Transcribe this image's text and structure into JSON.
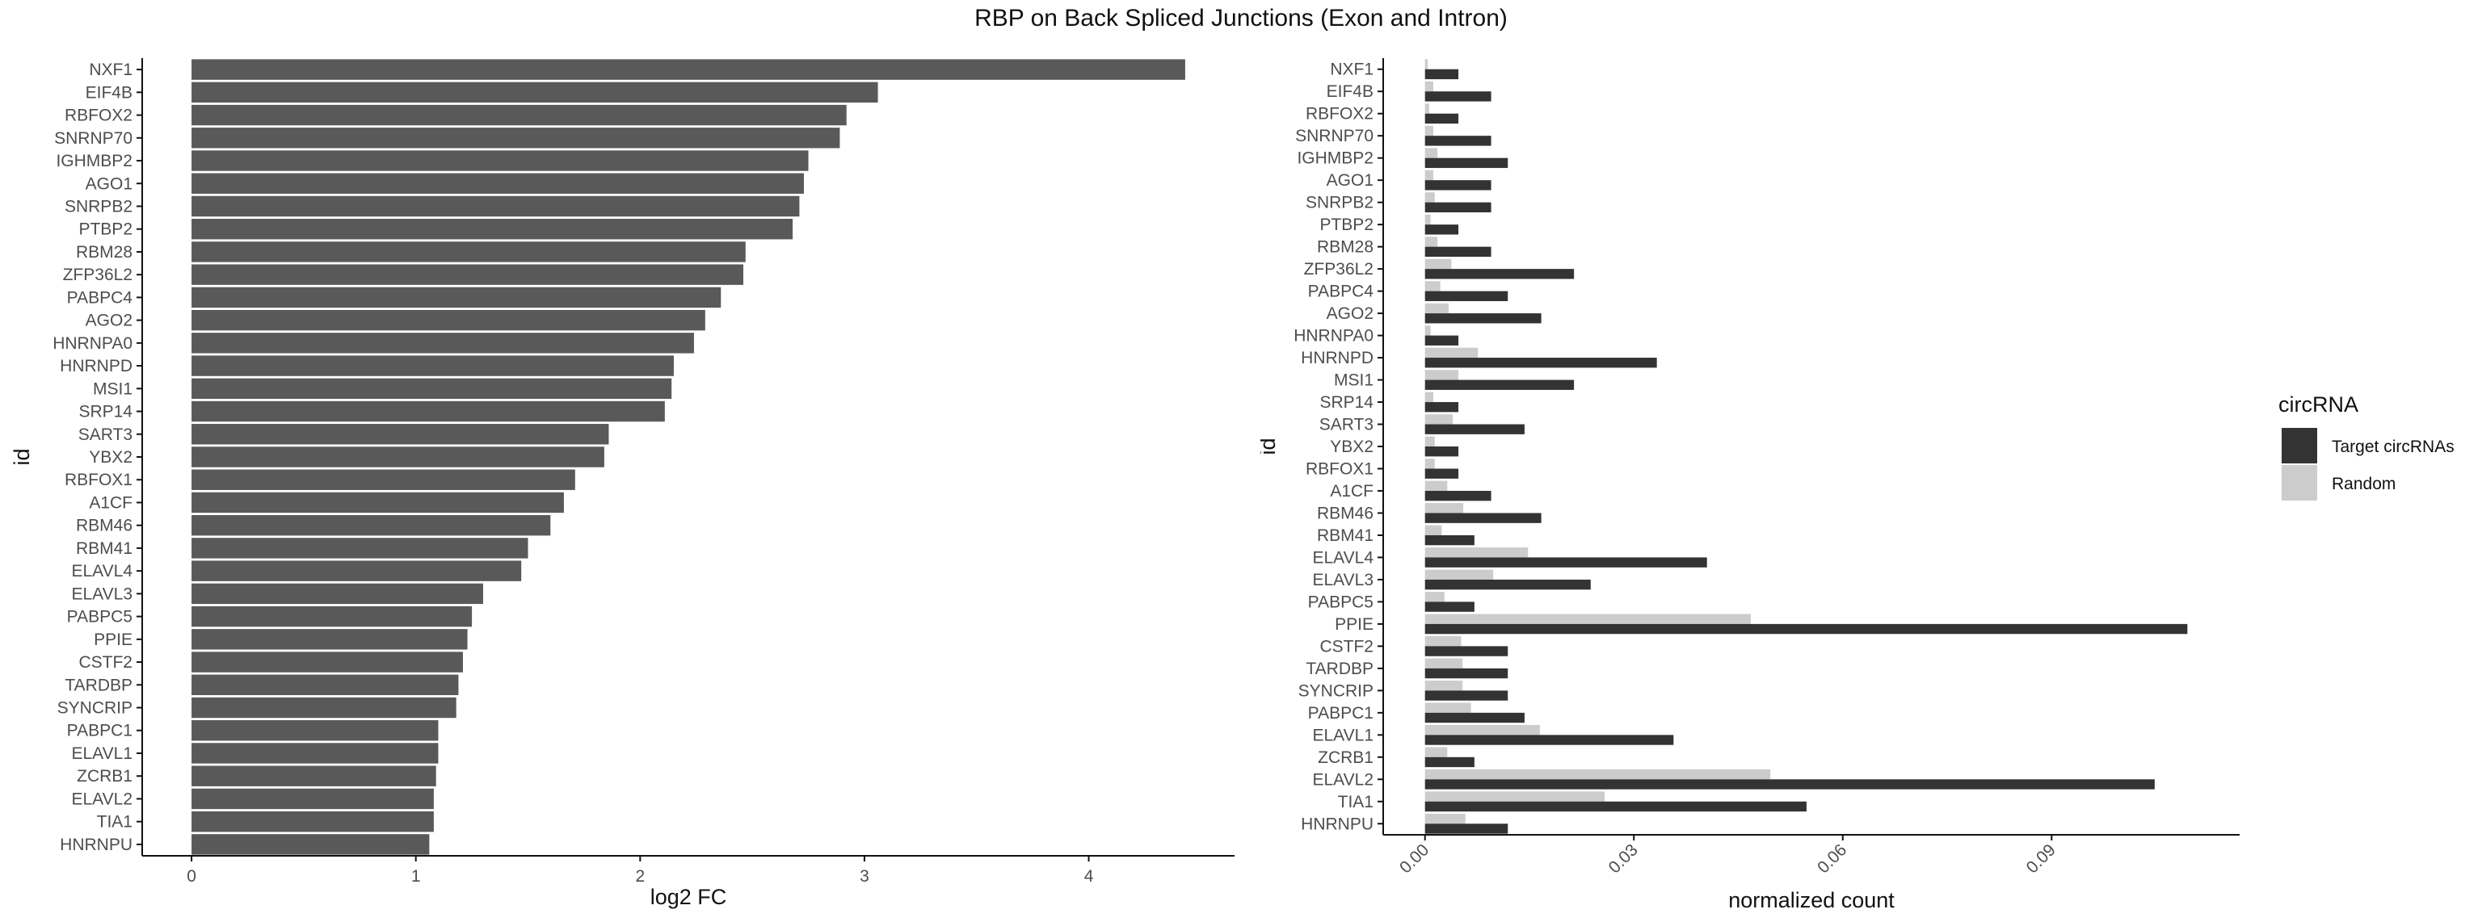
{
  "title": "RBP on Back Spliced Junctions (Exon and Intron)",
  "colors": {
    "bar_left": "#595959",
    "target": "#333333",
    "random": "#cccccc",
    "axis": "#111111"
  },
  "chart_data": [
    {
      "type": "bar",
      "orientation": "horizontal",
      "xlabel": "log2 FC",
      "ylabel": "id",
      "xlim": [
        -0.22,
        4.65
      ],
      "xticks": [
        0,
        1,
        2,
        3,
        4
      ],
      "grid": false,
      "categories": [
        "NXF1",
        "EIF4B",
        "RBFOX2",
        "SNRNP70",
        "IGHMBP2",
        "AGO1",
        "SNRPB2",
        "PTBP2",
        "RBM28",
        "ZFP36L2",
        "PABPC4",
        "AGO2",
        "HNRNPA0",
        "HNRNPD",
        "MSI1",
        "SRP14",
        "SART3",
        "YBX2",
        "RBFOX1",
        "A1CF",
        "RBM46",
        "RBM41",
        "ELAVL4",
        "ELAVL3",
        "PABPC5",
        "PPIE",
        "CSTF2",
        "TARDBP",
        "SYNCRIP",
        "PABPC1",
        "ELAVL1",
        "ZCRB1",
        "ELAVL2",
        "TIA1",
        "HNRNPU"
      ],
      "values": [
        4.43,
        3.06,
        2.92,
        2.89,
        2.75,
        2.73,
        2.71,
        2.68,
        2.47,
        2.46,
        2.36,
        2.29,
        2.24,
        2.15,
        2.14,
        2.11,
        1.86,
        1.84,
        1.71,
        1.66,
        1.6,
        1.5,
        1.47,
        1.3,
        1.25,
        1.23,
        1.21,
        1.19,
        1.18,
        1.1,
        1.1,
        1.09,
        1.08,
        1.08,
        1.06
      ]
    },
    {
      "type": "bar",
      "orientation": "horizontal",
      "xlabel": "normalized count",
      "ylabel": "id",
      "xlim": [
        -0.006,
        0.117
      ],
      "xticks": [
        0.0,
        0.03,
        0.06,
        0.09
      ],
      "xtick_labels": [
        "0.00",
        "0.03",
        "0.06",
        "0.09"
      ],
      "grid": false,
      "legend": {
        "title": "circRNA",
        "position": "right"
      },
      "categories": [
        "NXF1",
        "EIF4B",
        "RBFOX2",
        "SNRNP70",
        "IGHMBP2",
        "AGO1",
        "SNRPB2",
        "PTBP2",
        "RBM28",
        "ZFP36L2",
        "PABPC4",
        "AGO2",
        "HNRNPA0",
        "HNRNPD",
        "MSI1",
        "SRP14",
        "SART3",
        "YBX2",
        "RBFOX1",
        "A1CF",
        "RBM46",
        "RBM41",
        "ELAVL4",
        "ELAVL3",
        "PABPC5",
        "PPIE",
        "CSTF2",
        "TARDBP",
        "SYNCRIP",
        "PABPC1",
        "ELAVL1",
        "ZCRB1",
        "ELAVL2",
        "TIA1",
        "HNRNPU"
      ],
      "series": [
        {
          "name": "Target circRNAs",
          "values": [
            0.0048,
            0.0095,
            0.0048,
            0.0095,
            0.0119,
            0.0095,
            0.0095,
            0.0048,
            0.0095,
            0.0214,
            0.0119,
            0.0167,
            0.0048,
            0.0333,
            0.0214,
            0.0048,
            0.0143,
            0.0048,
            0.0048,
            0.0095,
            0.0167,
            0.0071,
            0.0405,
            0.0238,
            0.0071,
            0.1095,
            0.0119,
            0.0119,
            0.0119,
            0.0143,
            0.0357,
            0.0071,
            0.1048,
            0.0548,
            0.0119
          ]
        },
        {
          "name": "Random",
          "values": [
            0.0004,
            0.0012,
            0.0006,
            0.0012,
            0.0018,
            0.0012,
            0.0014,
            0.0008,
            0.0018,
            0.0038,
            0.0022,
            0.0034,
            0.0008,
            0.0076,
            0.0048,
            0.0012,
            0.004,
            0.0014,
            0.0014,
            0.0032,
            0.0055,
            0.0024,
            0.0148,
            0.0098,
            0.0028,
            0.0468,
            0.0052,
            0.0054,
            0.0054,
            0.0066,
            0.0165,
            0.0032,
            0.0496,
            0.0258,
            0.0058
          ]
        }
      ]
    }
  ]
}
